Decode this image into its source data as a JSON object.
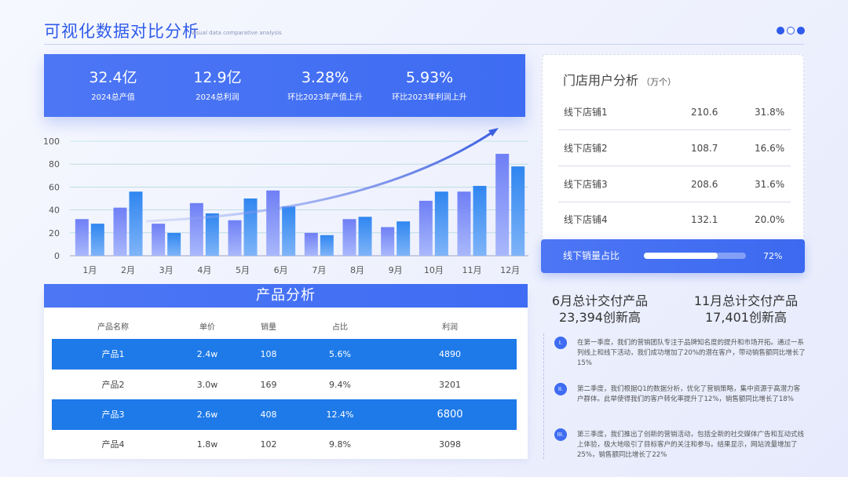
{
  "header": {
    "title": "可视化数据对比分析",
    "subtitle": "Visual data comparative analysis"
  },
  "kpis": [
    {
      "value": "32.4亿",
      "label": "2024总产值"
    },
    {
      "value": "12.9亿",
      "label": "2024总利润"
    },
    {
      "value": "3.28%",
      "label": "环比2023年产值上升"
    },
    {
      "value": "5.93%",
      "label": "环比2023年利润上升"
    }
  ],
  "chart_data": {
    "type": "bar",
    "categories": [
      "1月",
      "2月",
      "3月",
      "4月",
      "5月",
      "6月",
      "7月",
      "8月",
      "9月",
      "10月",
      "11月",
      "12月"
    ],
    "series": [
      {
        "values": [
          32,
          42,
          28,
          46,
          31,
          57,
          20,
          32,
          25,
          48,
          56,
          89
        ]
      },
      {
        "values": [
          28,
          56,
          20,
          37,
          50,
          43,
          18,
          34,
          30,
          56,
          61,
          78
        ]
      }
    ],
    "ylim": [
      0,
      100
    ],
    "yticks": [
      0,
      20,
      40,
      60,
      80,
      100
    ],
    "grid": true,
    "colors": [
      "#7b8ef6",
      "#2f8cf0"
    ]
  },
  "products": {
    "title": "产品分析",
    "columns": [
      "产品名称",
      "单价",
      "销量",
      "占比",
      "利润"
    ],
    "rows": [
      {
        "name": "产品1",
        "price": "2.4w",
        "qty": "108",
        "share": "5.6%",
        "profit": "4890"
      },
      {
        "name": "产品2",
        "price": "3.0w",
        "qty": "169",
        "share": "9.4%",
        "profit": "3201"
      },
      {
        "name": "产品3",
        "price": "2.6w",
        "qty": "408",
        "share": "12.4%",
        "profit": "6800"
      },
      {
        "name": "产品4",
        "price": "1.8w",
        "qty": "102",
        "share": "9.8%",
        "profit": "3098"
      }
    ]
  },
  "stores": {
    "title": "门店用户分析",
    "unit": "（万个）",
    "rows": [
      {
        "name": "线下店铺1",
        "value": "210.6",
        "share": "31.8%"
      },
      {
        "name": "线下店铺2",
        "value": "108.7",
        "share": "16.6%"
      },
      {
        "name": "线下店铺3",
        "value": "208.6",
        "share": "31.6%"
      },
      {
        "name": "线下店铺4",
        "value": "132.1",
        "share": "20.0%"
      }
    ]
  },
  "offline_ratio": {
    "label": "线下销量占比",
    "value_text": "72%",
    "fraction": 0.72
  },
  "highlights": [
    {
      "line1": "6月总计交付产品",
      "line2": "23,394创新高"
    },
    {
      "line1": "11月总计交付产品",
      "line2": "17,401创新高"
    }
  ],
  "notes": [
    {
      "num": "I.",
      "text": "在第一季度，我们的营销团队专注于品牌知名度的提升和市场开拓。通过一系列线上和线下活动，我们成功增加了20%的潜在客户，带动销售额同比增长了15%"
    },
    {
      "num": "II.",
      "text": "第二季度，我们根据Q1的数据分析，优化了营销策略，集中资源于高潜力客户群体。此举使得我们的客户转化率提升了12%，销售额同比增长了18%"
    },
    {
      "num": "III.",
      "text": "第三季度，我们推出了创新的营销活动，包括全新的社交媒体广告和互动式线上体验，极大地吸引了目标客户的关注和参与。结果显示，网站流量增加了25%，销售额同比增长了22%"
    }
  ]
}
